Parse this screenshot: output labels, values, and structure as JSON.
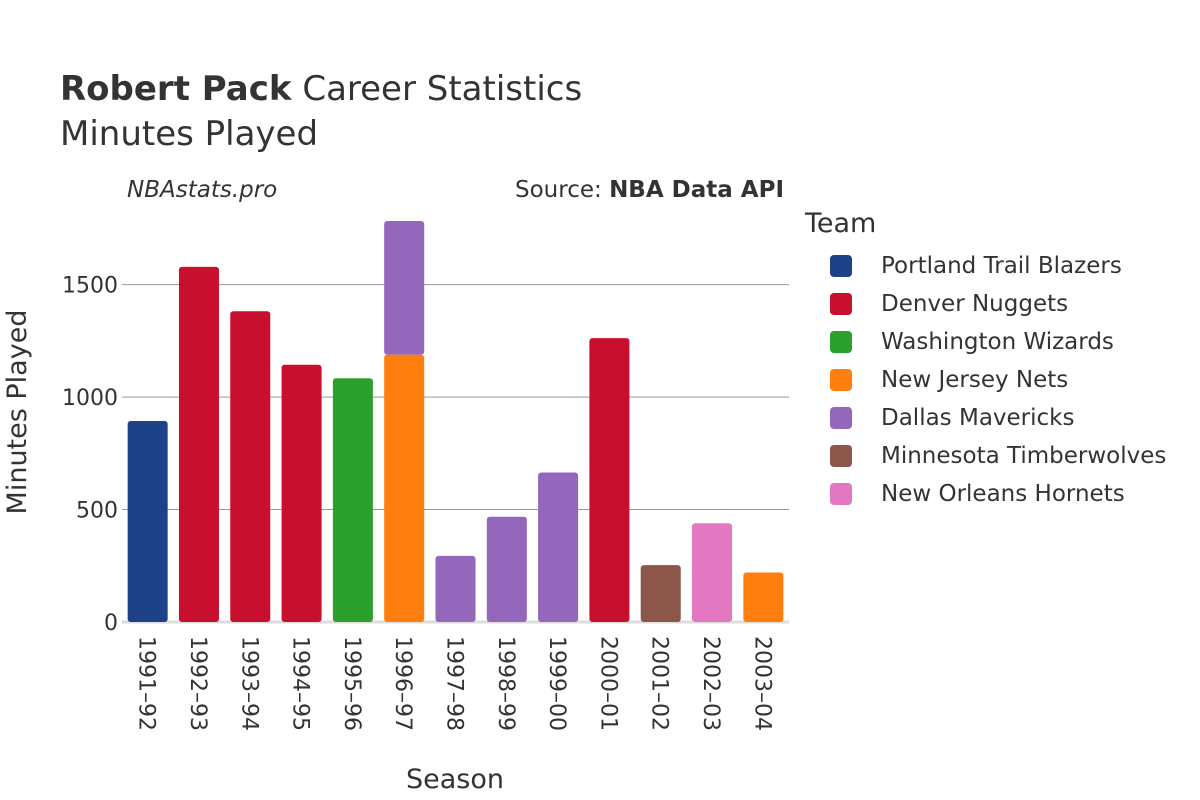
{
  "header": {
    "title_bold": "Robert Pack",
    "title_rest": "Career Statistics",
    "subtitle": "Minutes Played",
    "watermark": "NBAstats.pro",
    "source_prefix": "Source: ",
    "source_bold": "NBA Data API"
  },
  "colors": {
    "Portland Trail Blazers": "#1d428a",
    "Denver Nuggets": "#c8102e",
    "Washington Wizards": "#2ca02c",
    "New Jersey Nets": "#ff7f0e",
    "Dallas Mavericks": "#9467bd",
    "Minnesota Timberwolves": "#8c564b",
    "New Orleans Hornets": "#e377c2"
  },
  "legend": {
    "title": "Team",
    "items": [
      "Portland Trail Blazers",
      "Denver Nuggets",
      "Washington Wizards",
      "New Jersey Nets",
      "Dallas Mavericks",
      "Minnesota Timberwolves",
      "New Orleans Hornets"
    ]
  },
  "chart_data": {
    "type": "bar",
    "stacked": true,
    "xlabel": "Season",
    "ylabel": "Minutes Played",
    "ylim": [
      0,
      1800
    ],
    "yticks": [
      0,
      500,
      1000,
      1500
    ],
    "grid": true,
    "legend_position": "right",
    "categories": [
      "1991–92",
      "1992–93",
      "1993–94",
      "1994–95",
      "1995–96",
      "1996–97",
      "1997–98",
      "1998–99",
      "1999–00",
      "2000–01",
      "2001–02",
      "2002–03",
      "2003–04"
    ],
    "series": [
      {
        "name": "Portland Trail Blazers",
        "values": [
          894,
          0,
          0,
          0,
          0,
          0,
          0,
          0,
          0,
          0,
          0,
          0,
          0
        ]
      },
      {
        "name": "Denver Nuggets",
        "values": [
          0,
          1579,
          1382,
          1144,
          0,
          0,
          0,
          0,
          0,
          1262,
          0,
          0,
          0
        ]
      },
      {
        "name": "Washington Wizards",
        "values": [
          0,
          0,
          0,
          0,
          1084,
          0,
          0,
          0,
          0,
          0,
          0,
          0,
          0
        ]
      },
      {
        "name": "New Jersey Nets",
        "values": [
          0,
          0,
          0,
          0,
          0,
          1189,
          0,
          0,
          0,
          0,
          0,
          0,
          220
        ]
      },
      {
        "name": "Dallas Mavericks",
        "values": [
          0,
          0,
          0,
          0,
          0,
          594,
          294,
          468,
          665,
          0,
          0,
          0,
          0
        ]
      },
      {
        "name": "Minnesota Timberwolves",
        "values": [
          0,
          0,
          0,
          0,
          0,
          0,
          0,
          0,
          0,
          0,
          253,
          0,
          0
        ]
      },
      {
        "name": "New Orleans Hornets",
        "values": [
          0,
          0,
          0,
          0,
          0,
          0,
          0,
          0,
          0,
          0,
          0,
          439,
          0
        ]
      }
    ]
  }
}
